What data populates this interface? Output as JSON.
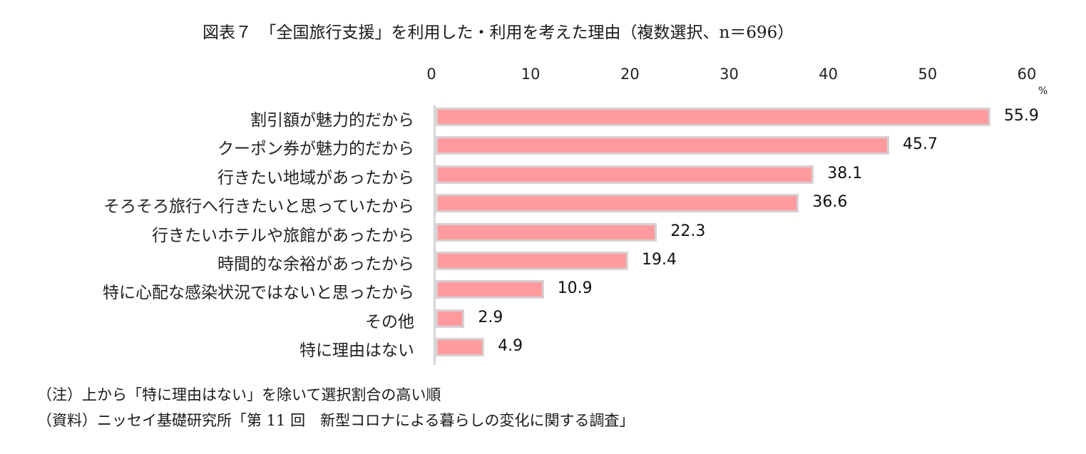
{
  "title": "図表７　「全国旅行支援」を利用した・利用を考えた理由（複数選択、n＝696）",
  "axis": {
    "ticks": [
      "0",
      "10",
      "20",
      "30",
      "40",
      "50",
      "60"
    ],
    "unit": "%"
  },
  "rows": [
    {
      "label": "割引額が魅力的だから",
      "value": "55.9"
    },
    {
      "label": "クーポン券が魅力的だから",
      "value": "45.7"
    },
    {
      "label": "行きたい地域があったから",
      "value": "38.1"
    },
    {
      "label": "そろそろ旅行へ行きたいと思っていたから",
      "value": "36.6"
    },
    {
      "label": "行きたいホテルや旅館があったから",
      "value": "22.3"
    },
    {
      "label": "時間的な余裕があったから",
      "value": "19.4"
    },
    {
      "label": "特に心配な感染状況ではないと思ったから",
      "value": "10.9"
    },
    {
      "label": "その他",
      "value": "2.9"
    },
    {
      "label": "特に理由はない",
      "value": "4.9"
    }
  ],
  "notes": {
    "note": "（注）上から「特に理由はない」を除いて選択割合の高い順",
    "source": "（資料）ニッセイ基礎研究所「第 11 回　新型コロナによる暮らしの変化に関する調査」"
  },
  "colors": {
    "bar_fill": "#ff9b9e",
    "bar_border": "#d8d0d2",
    "axis": "#d6d6d6"
  },
  "chart_data": {
    "type": "bar",
    "orientation": "horizontal",
    "title": "図表７　「全国旅行支援」を利用した・利用を考えた理由（複数選択、n＝696）",
    "categories": [
      "割引額が魅力的だから",
      "クーポン券が魅力的だから",
      "行きたい地域があったから",
      "そろそろ旅行へ行きたいと思っていたから",
      "行きたいホテルや旅館があったから",
      "時間的な余裕があったから",
      "特に心配な感染状況ではないと思ったから",
      "その他",
      "特に理由はない"
    ],
    "values": [
      55.9,
      45.7,
      38.1,
      36.6,
      22.3,
      19.4,
      10.9,
      2.9,
      4.9
    ],
    "xlabel": "%",
    "ylabel": "",
    "xlim": [
      0,
      60
    ],
    "xticks": [
      0,
      10,
      20,
      30,
      40,
      50,
      60
    ],
    "tick_position": "top",
    "grid": false,
    "legend": null,
    "data_labels": true,
    "annotations": [
      "（注）上から「特に理由はない」を除いて選択割合の高い順",
      "（資料）ニッセイ基礎研究所「第 11 回　新型コロナによる暮らしの変化に関する調査」"
    ]
  }
}
